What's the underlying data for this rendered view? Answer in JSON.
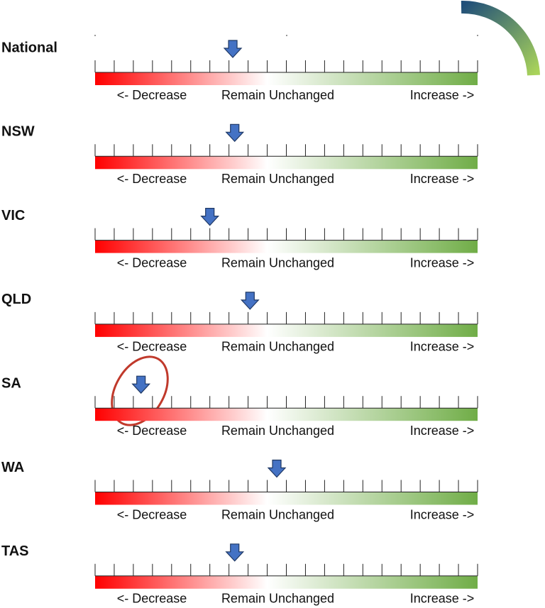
{
  "chart_data": {
    "type": "gauge",
    "categories": [
      "National",
      "NSW",
      "VIC",
      "QLD",
      "SA",
      "WA",
      "TAS"
    ],
    "values": [
      -2.8,
      -2.7,
      -4.0,
      -1.9,
      -7.6,
      -0.5,
      -2.7
    ],
    "xlim": [
      -10,
      10
    ],
    "xticks": [
      -10,
      -9,
      -8,
      -7,
      -6,
      -5,
      -4,
      -3,
      -2,
      -1,
      0,
      1,
      2,
      3,
      4,
      5,
      6,
      7,
      8,
      9,
      10
    ],
    "scale_labels": [
      "<- Decrease",
      "Remain Unchanged",
      "Increase ->"
    ],
    "color": "#4472c4"
  }
}
